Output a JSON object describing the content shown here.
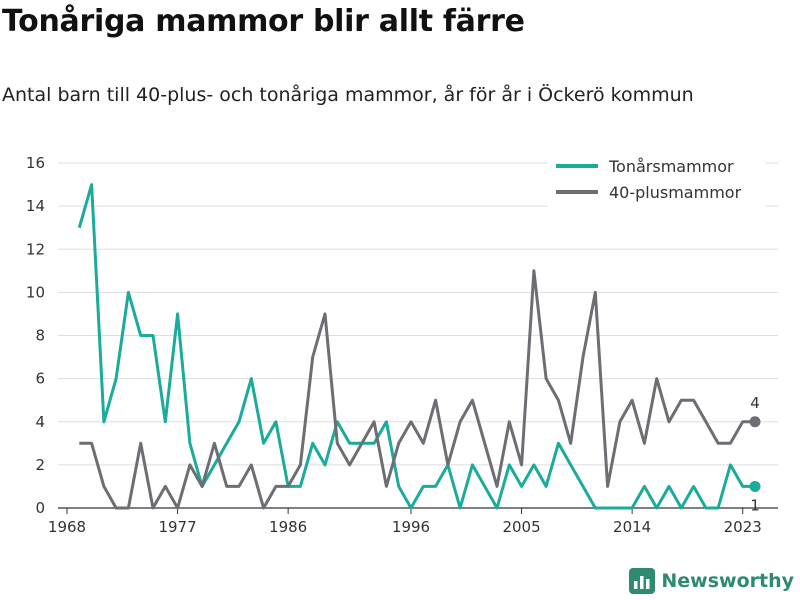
{
  "header": {
    "title": "Tonåriga mammor blir allt färre",
    "subtitle": "Antal barn till 40-plus- och tonåriga mammor, år för år i Öckerö kommun"
  },
  "brand": {
    "name": "Newsworthy",
    "icon": "bar-chart-logo-icon",
    "color": "#2e8b72"
  },
  "chart_data": {
    "type": "line",
    "x": [
      1969,
      1970,
      1971,
      1972,
      1973,
      1974,
      1975,
      1976,
      1977,
      1978,
      1979,
      1980,
      1981,
      1982,
      1983,
      1984,
      1985,
      1986,
      1987,
      1988,
      1989,
      1990,
      1991,
      1992,
      1993,
      1994,
      1995,
      1996,
      1997,
      1998,
      1999,
      2000,
      2001,
      2002,
      2003,
      2004,
      2005,
      2006,
      2007,
      2008,
      2009,
      2010,
      2011,
      2012,
      2013,
      2014,
      2015,
      2016,
      2017,
      2018,
      2019,
      2020,
      2021,
      2022,
      2023,
      2024
    ],
    "series": [
      {
        "name": "Tonårsmammor",
        "color": "#1aab9b",
        "values": [
          13,
          15,
          4,
          6,
          10,
          8,
          8,
          4,
          9,
          3,
          1,
          2,
          3,
          4,
          6,
          3,
          4,
          1,
          1,
          3,
          2,
          4,
          3,
          3,
          3,
          4,
          1,
          0,
          1,
          1,
          2,
          0,
          2,
          1,
          0,
          2,
          1,
          2,
          1,
          3,
          2,
          1,
          0,
          0,
          0,
          0,
          1,
          0,
          1,
          0,
          1,
          0,
          0,
          2,
          1,
          1
        ]
      },
      {
        "name": "40-plusmammor",
        "color": "#6d6d73",
        "values": [
          3,
          3,
          1,
          0,
          0,
          3,
          0,
          1,
          0,
          2,
          1,
          3,
          1,
          1,
          2,
          0,
          1,
          1,
          2,
          7,
          9,
          3,
          2,
          3,
          4,
          1,
          3,
          4,
          3,
          5,
          2,
          4,
          5,
          3,
          1,
          4,
          2,
          11,
          6,
          5,
          3,
          7,
          10,
          1,
          4,
          5,
          3,
          6,
          4,
          5,
          5,
          4,
          3,
          3,
          4,
          4
        ]
      }
    ],
    "xticks": [
      1968,
      1977,
      1986,
      1996,
      2005,
      2014,
      2023
    ],
    "yticks": [
      0,
      2,
      4,
      6,
      8,
      10,
      12,
      14,
      16
    ],
    "xlim": [
      1968,
      2024
    ],
    "ylim": [
      0,
      16
    ],
    "grid": "horizontal",
    "legend": "top-right",
    "end_labels": [
      "1",
      "4"
    ]
  }
}
